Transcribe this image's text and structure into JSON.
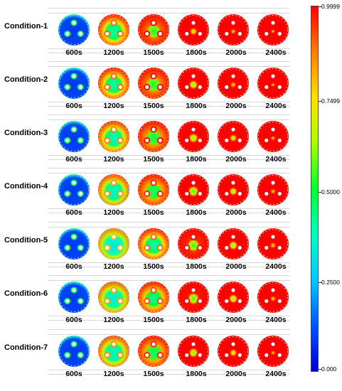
{
  "rows": [
    {
      "label": "Condition-1",
      "fractions": [
        0.12,
        0.55,
        0.7,
        0.9,
        0.96,
        1.0
      ]
    },
    {
      "label": "Condition-2",
      "fractions": [
        0.12,
        0.55,
        0.68,
        0.86,
        0.94,
        1.0
      ]
    },
    {
      "label": "Condition-3",
      "fractions": [
        0.12,
        0.52,
        0.65,
        0.84,
        0.9,
        0.98
      ]
    },
    {
      "label": "Condition-4",
      "fractions": [
        0.12,
        0.5,
        0.62,
        0.8,
        0.88,
        0.96
      ]
    },
    {
      "label": "Condition-5",
      "fractions": [
        0.12,
        0.45,
        0.55,
        0.76,
        0.86,
        0.94
      ]
    },
    {
      "label": "Condition-6",
      "fractions": [
        0.12,
        0.48,
        0.58,
        0.78,
        0.86,
        0.95
      ]
    },
    {
      "label": "Condition-7",
      "fractions": [
        0.12,
        0.5,
        0.62,
        0.84,
        0.9,
        0.98
      ]
    }
  ],
  "times": [
    "600s",
    "1200s",
    "1500s",
    "1800s",
    "2000s",
    "2400s"
  ],
  "colorbar": {
    "labels": [
      "0.9999",
      "0.7499",
      "0.5000",
      "0.2500",
      "0.000"
    ],
    "colors": [
      "#ff0000",
      "#ffe000",
      "#00ff30",
      "#00c8ff",
      "#0000cc"
    ]
  }
}
